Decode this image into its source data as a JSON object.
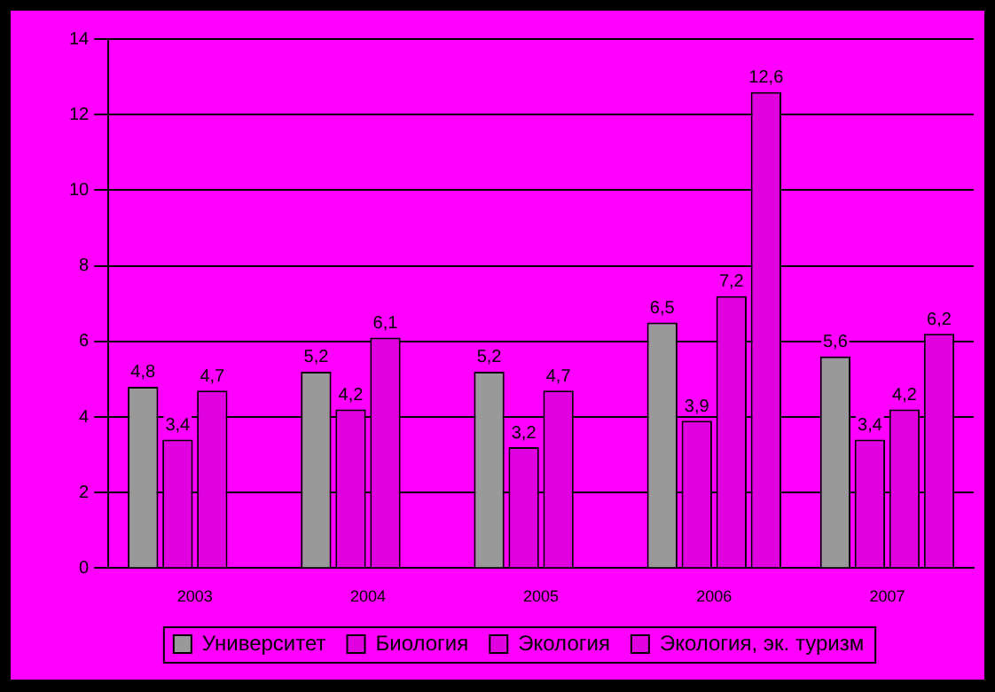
{
  "chart_data": {
    "type": "bar",
    "categories": [
      "2003",
      "2004",
      "2005",
      "2006",
      "2007"
    ],
    "series": [
      {
        "name": "Университет",
        "color": "#999999",
        "values": [
          4.8,
          5.2,
          5.2,
          6.5,
          5.6
        ],
        "value_labels": [
          "4,8",
          "5,2",
          "5,2",
          "6,5",
          "5,6"
        ]
      },
      {
        "name": "Биология",
        "color": "#e000e0",
        "values": [
          3.4,
          4.2,
          3.2,
          3.9,
          3.4
        ],
        "value_labels": [
          "3,4",
          "4,2",
          "3,2",
          "3,9",
          "3,4"
        ]
      },
      {
        "name": "Экология",
        "color": "#e000e0",
        "values": [
          4.7,
          6.1,
          4.7,
          7.2,
          4.2
        ],
        "value_labels": [
          "4,7",
          "6,1",
          "4,7",
          "7,2",
          "4,2"
        ]
      },
      {
        "name": "Экология, эк. туризм",
        "color": "#e000e0",
        "values": [
          null,
          null,
          null,
          12.6,
          6.2
        ],
        "value_labels": [
          null,
          null,
          null,
          "12,6",
          "6,2"
        ]
      }
    ],
    "ylim": [
      0,
      14
    ],
    "yticks": [
      0,
      2,
      4,
      6,
      8,
      10,
      12,
      14
    ],
    "grid": "y",
    "legend": "bottom"
  }
}
